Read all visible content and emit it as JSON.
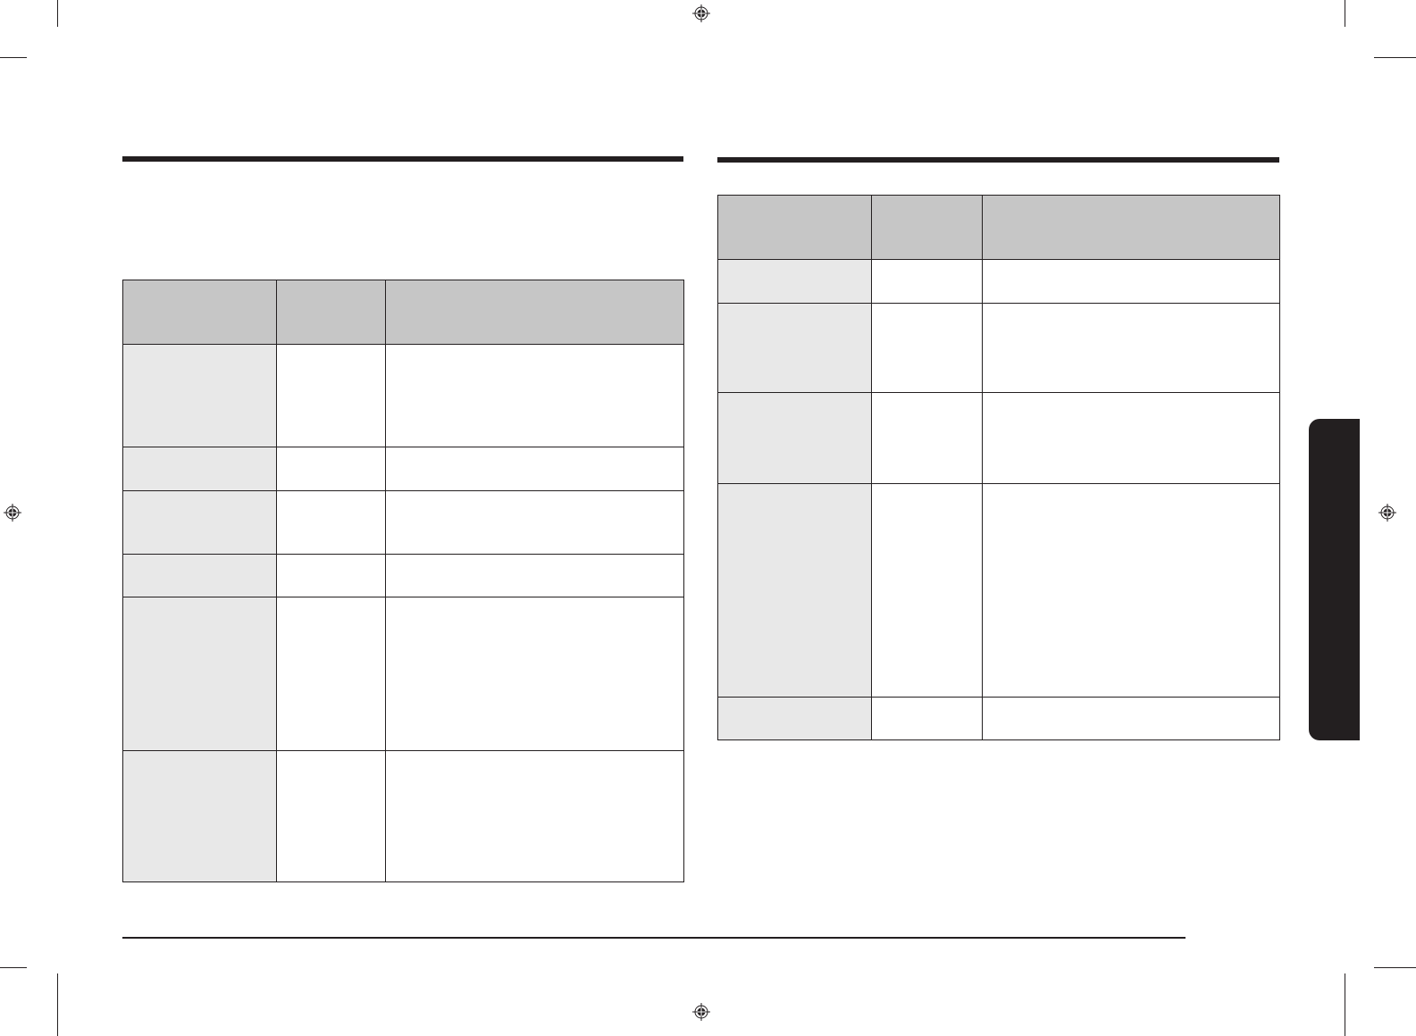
{
  "colors": {
    "rule": "#231f20",
    "header_fill": "#c6c6c6",
    "first_column_fill": "#e8e8e8",
    "body_fill": "#ffffff",
    "side_tab": "#231f20"
  },
  "icons": {
    "registration_mark": "registration-mark-icon"
  }
}
